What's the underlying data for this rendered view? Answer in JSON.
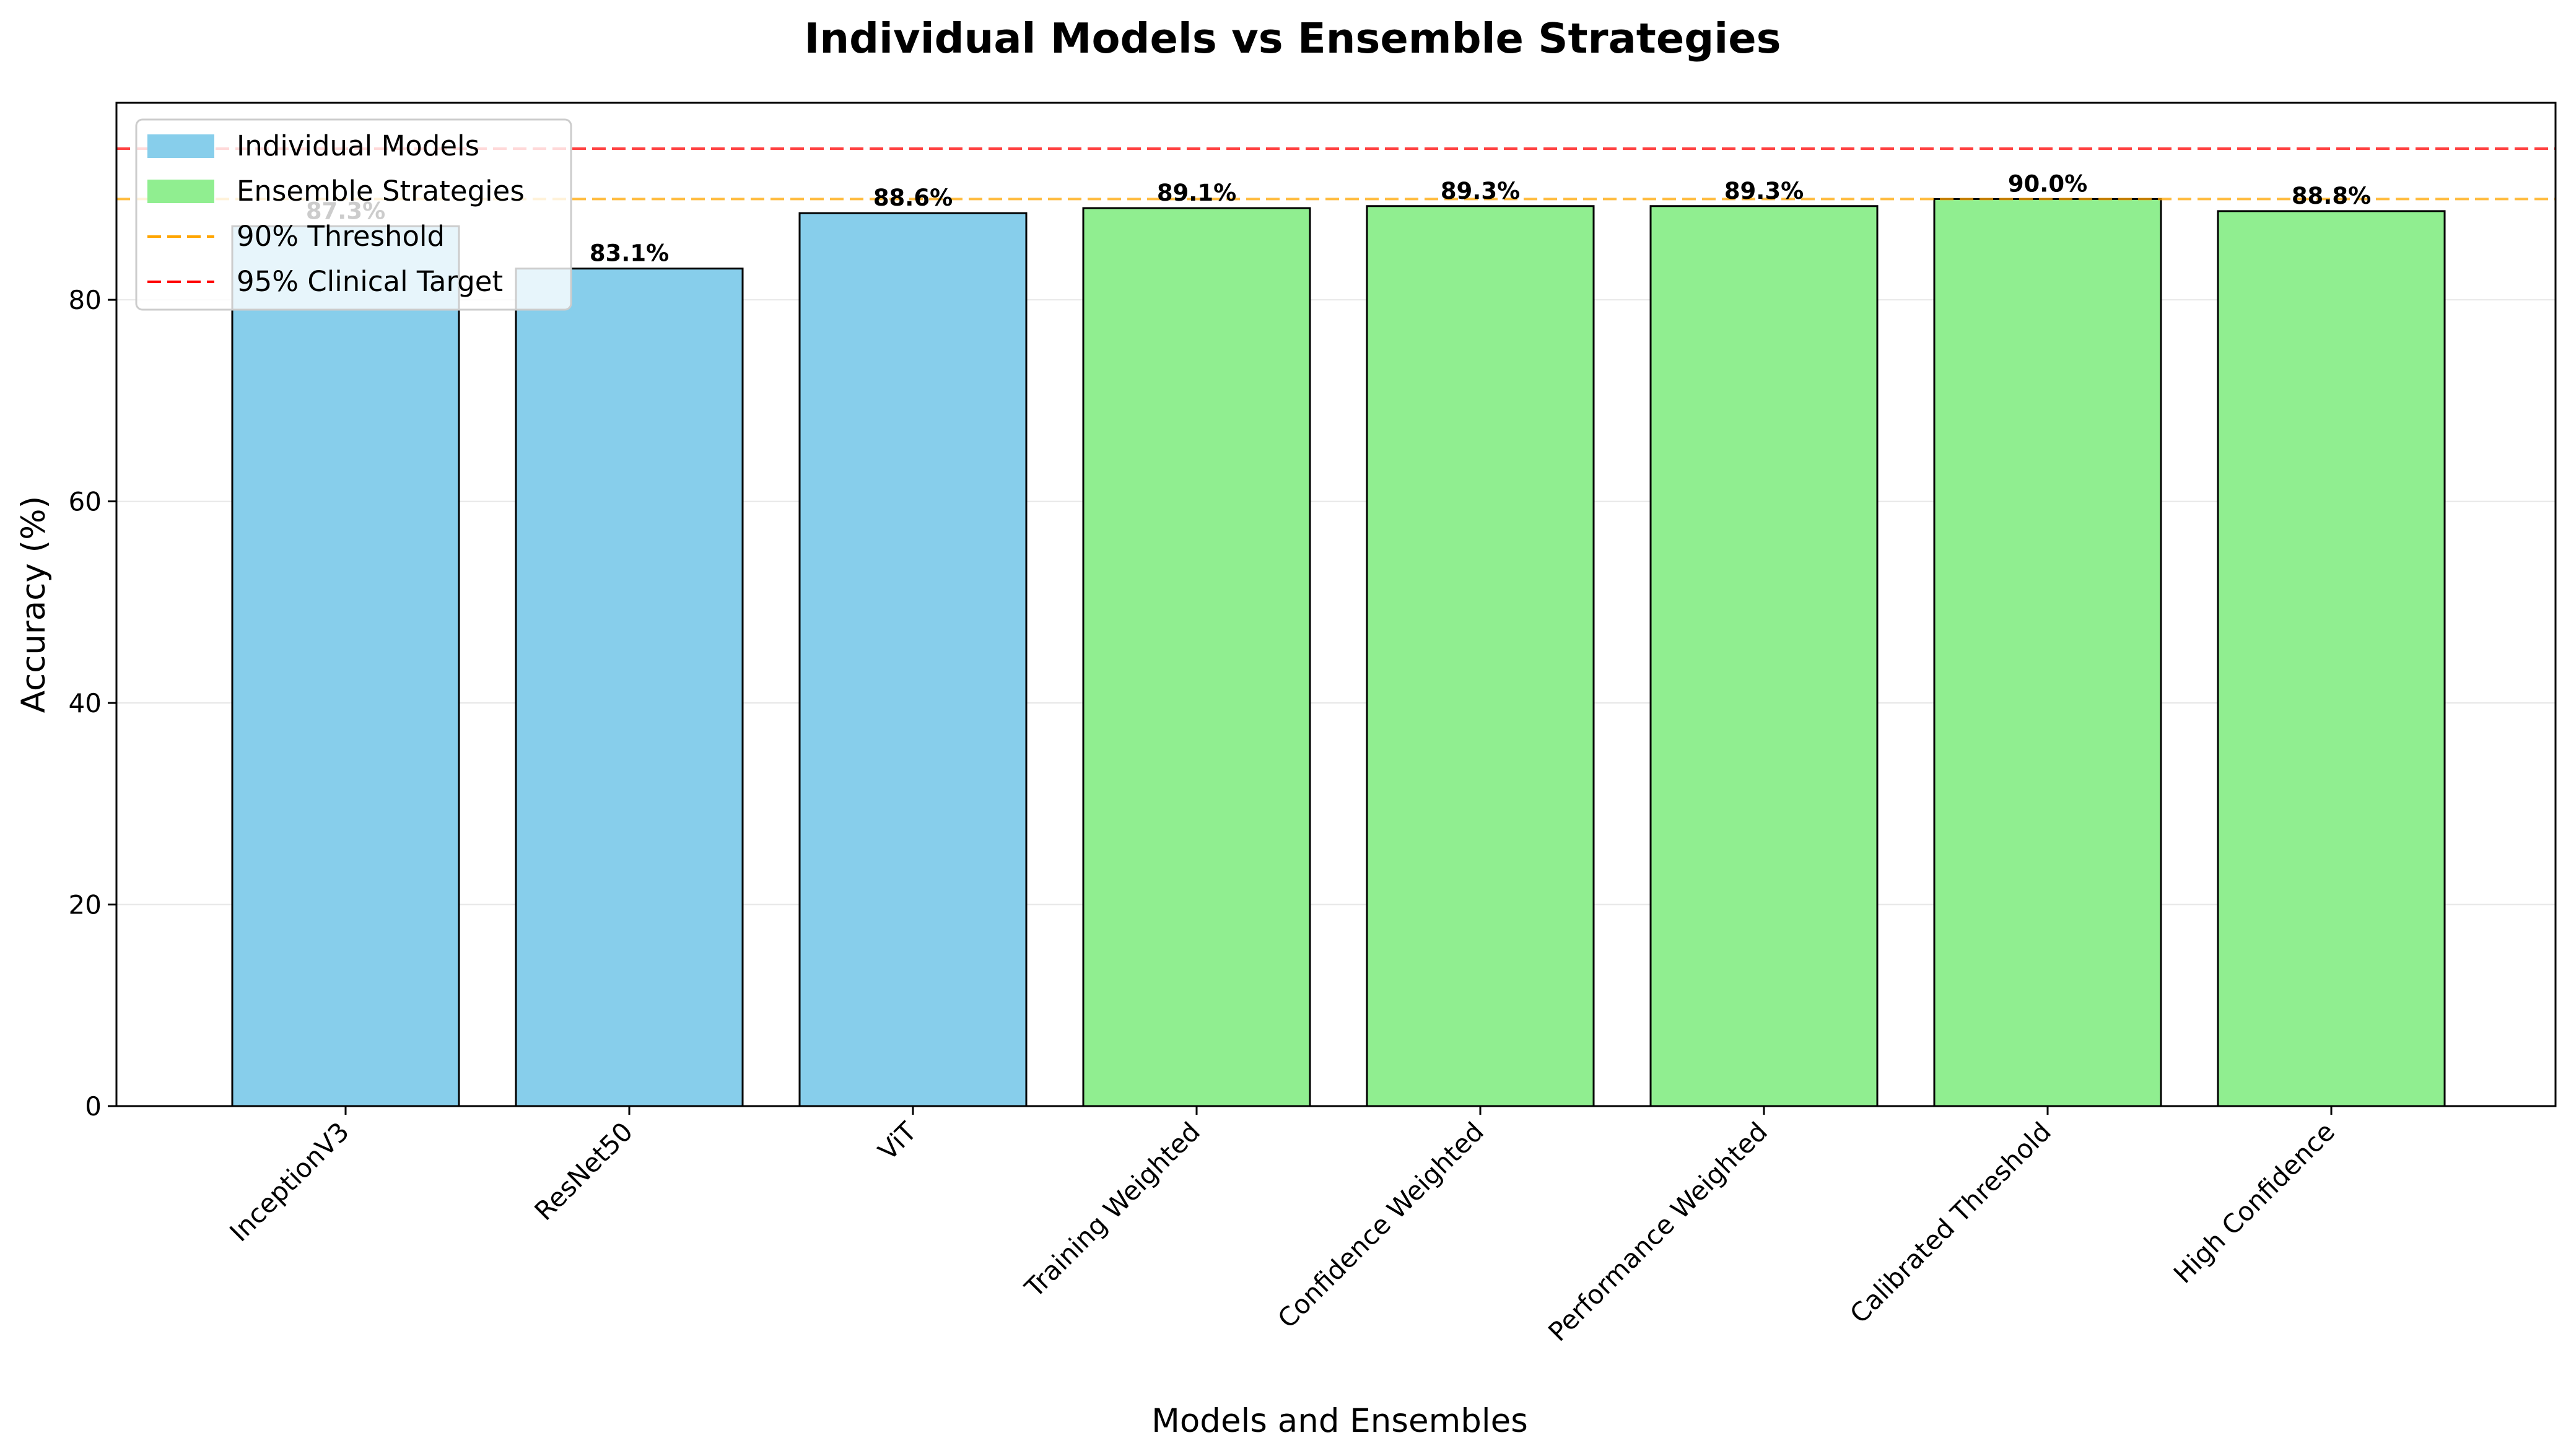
{
  "chart_data": {
    "type": "bar",
    "title": "Individual Models vs Ensemble Strategies",
    "xlabel": "Models and Ensembles",
    "ylabel": "Accuracy (%)",
    "ylim": [
      0,
      100
    ],
    "yticks": [
      "0",
      "20",
      "40",
      "60",
      "80"
    ],
    "grid": "horizontal",
    "legend_position": "top-left",
    "categories": [
      "InceptionV3",
      "ResNet50",
      "ViT",
      "Training Weighted",
      "Confidence Weighted",
      "Performance Weighted",
      "Calibrated Threshold",
      "High Confidence"
    ],
    "values": [
      87.3,
      83.1,
      88.6,
      89.1,
      89.3,
      89.3,
      90.0,
      88.8
    ],
    "value_labels": [
      "87.3%",
      "83.1%",
      "88.6%",
      "89.1%",
      "89.3%",
      "89.3%",
      "90.0%",
      "88.8%"
    ],
    "groups": [
      "Individual Models",
      "Individual Models",
      "Individual Models",
      "Ensemble Strategies",
      "Ensemble Strategies",
      "Ensemble Strategies",
      "Ensemble Strategies",
      "Ensemble Strategies"
    ],
    "group_colors": {
      "Individual Models": "#87ceeb",
      "Ensemble Strategies": "#90ee90"
    },
    "reference_lines": [
      {
        "label": "90% Threshold",
        "value": 90,
        "color": "#ffa500"
      },
      {
        "label": "95% Clinical Target",
        "value": 95,
        "color": "#ff0000"
      }
    ],
    "legend": [
      {
        "label": "Individual Models",
        "kind": "patch",
        "color": "#87ceeb"
      },
      {
        "label": "Ensemble Strategies",
        "kind": "patch",
        "color": "#90ee90"
      },
      {
        "label": "90% Threshold",
        "kind": "dashed-line",
        "color": "#ffa500"
      },
      {
        "label": "95% Clinical Target",
        "kind": "dashed-line",
        "color": "#ff0000"
      }
    ]
  }
}
